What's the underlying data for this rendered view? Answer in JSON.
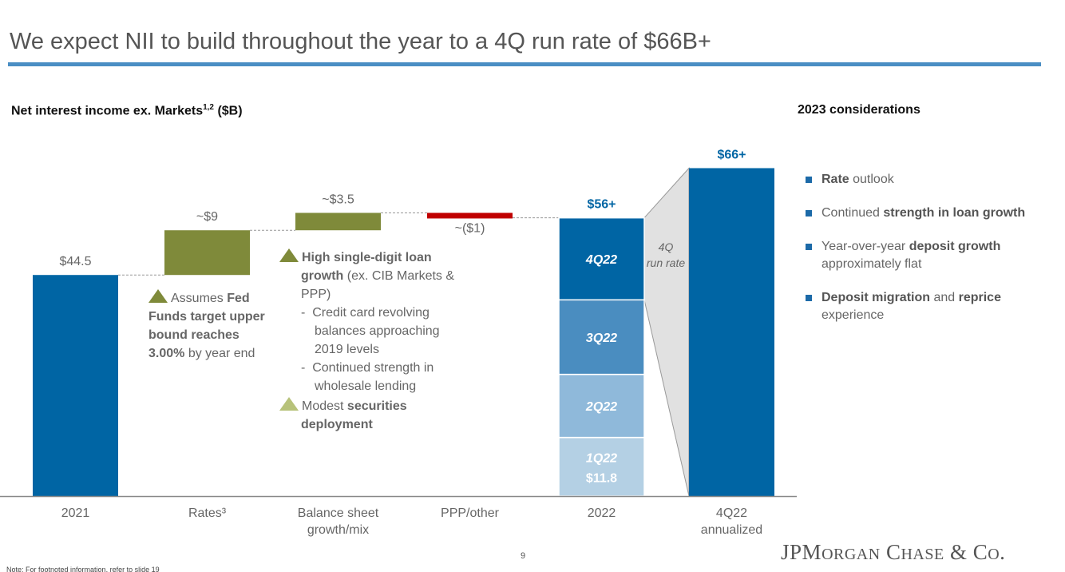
{
  "title": "We expect NII to build throughout the year to a 4Q run rate of $66B+",
  "subtitle": {
    "text": "Net interest income ex. Markets",
    "superscript": "1,2",
    "unit": "($B)"
  },
  "considerations": {
    "heading": "2023 considerations",
    "items": [
      {
        "bold1": "Rate",
        "text1": " outlook",
        "bold2": "",
        "text2": ""
      },
      {
        "bold1": "",
        "text1": "Continued ",
        "bold2": "strength in loan growth",
        "text2": ""
      },
      {
        "bold1": "",
        "text1": "Year-over-year ",
        "bold2": "deposit growth",
        "text2": " approximately flat"
      },
      {
        "bold1": "Deposit migration",
        "text1": " and ",
        "bold2": "reprice",
        "text2": " experience"
      }
    ]
  },
  "annotations": {
    "rates": {
      "pre": "Assumes ",
      "bold": "Fed Funds target upper bound reaches 3.00%",
      "post": " by year end"
    },
    "balance": {
      "item1_bold": "High single-digit loan growth",
      "item1_text": " (ex. CIB Markets & PPP)",
      "sub1": "Credit card revolving balances approaching 2019 levels",
      "sub2": "Continued strength in wholesale lending",
      "item2_text": "Modest ",
      "item2_bold": "securities deployment"
    },
    "run_rate": "4Q run rate"
  },
  "chart_data": {
    "type": "bar",
    "subtype": "waterfall",
    "categories": [
      "2021",
      "Rates³",
      "Balance sheet growth/mix",
      "PPP/other",
      "2022",
      "4Q22 annualized"
    ],
    "bars": [
      {
        "category": "2021",
        "base": 0,
        "value": 44.5,
        "label": "$44.5",
        "color": "#0065a4",
        "kind": "total"
      },
      {
        "category": "Rates³",
        "base": 44.5,
        "value": 9,
        "label": "~$9",
        "color": "#7f8a3a",
        "kind": "increase"
      },
      {
        "category": "Balance sheet growth/mix",
        "base": 53.5,
        "value": 3.5,
        "label": "~$3.5",
        "color": "#7f8a3a",
        "kind": "increase"
      },
      {
        "category": "PPP/other",
        "base": 57,
        "value": -1,
        "label": "~($1)",
        "color": "#c00000",
        "kind": "decrease"
      },
      {
        "category": "2022",
        "base": 0,
        "value": 56,
        "label": "$56+",
        "color": "#0065a4",
        "kind": "stacked",
        "segments": [
          {
            "name": "1Q22",
            "value": 11.8,
            "label": "$11.8",
            "color": "#b4d0e4"
          },
          {
            "name": "2Q22",
            "value": 12.7,
            "color": "#8fb9da"
          },
          {
            "name": "3Q22",
            "value": 15.0,
            "color": "#4a8dc0"
          },
          {
            "name": "4Q22",
            "value": 16.5,
            "color": "#0065a4"
          }
        ]
      },
      {
        "category": "4Q22 annualized",
        "base": 0,
        "value": 66,
        "label": "$66+",
        "color": "#0065a4",
        "kind": "total"
      }
    ],
    "ylim": [
      0,
      70
    ],
    "grid": false,
    "colors": {
      "total_label": "#0065a4",
      "label": "#666666",
      "connector": "#999999",
      "run_rate_fill": "#e1e1e1"
    }
  },
  "footer": {
    "note": "Note: For footnoted information, refer to slide 19",
    "page": "9",
    "logo": "JPMorgan Chase & Co."
  }
}
